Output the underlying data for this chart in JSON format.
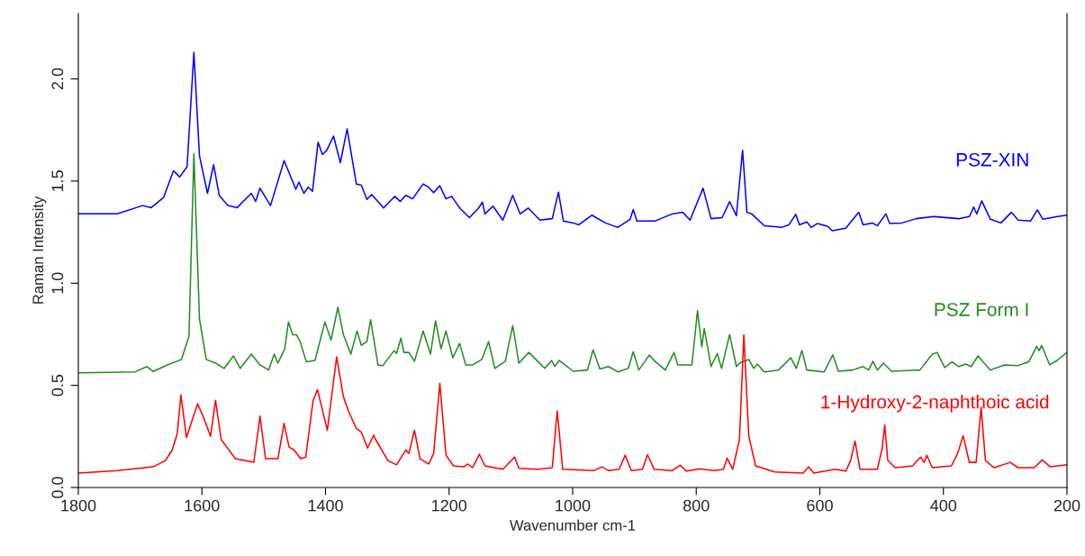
{
  "chart_data": {
    "type": "line",
    "xlabel": "Wavenumber cm-1",
    "ylabel": "Raman Intensity",
    "xlim": [
      1800,
      200
    ],
    "xticks": [
      1800,
      1600,
      1400,
      1200,
      1000,
      800,
      600,
      400,
      200
    ],
    "ylim": [
      0,
      2.32
    ],
    "yticks": [
      {
        "value": 0,
        "label": "0.0"
      },
      0.5,
      {
        "value": 1,
        "label": "1.0"
      },
      1.5,
      {
        "value": 2,
        "label": "2.0"
      }
    ],
    "grid": false,
    "legend": false,
    "series": [
      {
        "name": "PSZ-XIN",
        "color": "#0000ff",
        "x": [
          1800,
          1737,
          1696,
          1682,
          1662,
          1646,
          1636,
          1624,
          1613,
          1604,
          1591,
          1581,
          1572,
          1558,
          1543,
          1520,
          1513,
          1506,
          1489,
          1467,
          1448,
          1443,
          1435,
          1428,
          1421,
          1412,
          1405,
          1398,
          1387,
          1376,
          1365,
          1350,
          1342,
          1333,
          1325,
          1306,
          1288,
          1279,
          1270,
          1259,
          1242,
          1233,
          1225,
          1215,
          1205,
          1196,
          1182,
          1167,
          1153,
          1146,
          1142,
          1129,
          1113,
          1097,
          1085,
          1072,
          1053,
          1033,
          1023,
          1015,
          999,
          990,
          969,
          947,
          927,
          907,
          902,
          896,
          867,
          839,
          822,
          810,
          789,
          776,
          758,
          746,
          735,
          725,
          718,
          710,
          690,
          661,
          650,
          639,
          633,
          621,
          614,
          604,
          587,
          580,
          558,
          537,
          530,
          515,
          507,
          493,
          487,
          467,
          444,
          415,
          375,
          358,
          351,
          346,
          338,
          324,
          307,
          290,
          279,
          259,
          248,
          239,
          215,
          200
        ],
        "values": [
          1.34,
          1.34,
          1.38,
          1.37,
          1.42,
          1.55,
          1.52,
          1.57,
          2.13,
          1.625,
          1.44,
          1.58,
          1.43,
          1.38,
          1.37,
          1.44,
          1.4,
          1.465,
          1.38,
          1.6,
          1.46,
          1.495,
          1.44,
          1.47,
          1.45,
          1.69,
          1.63,
          1.65,
          1.72,
          1.59,
          1.755,
          1.485,
          1.48,
          1.41,
          1.434,
          1.368,
          1.425,
          1.4,
          1.43,
          1.413,
          1.486,
          1.469,
          1.443,
          1.477,
          1.413,
          1.425,
          1.365,
          1.321,
          1.365,
          1.396,
          1.339,
          1.377,
          1.309,
          1.43,
          1.339,
          1.368,
          1.309,
          1.316,
          1.446,
          1.304,
          1.295,
          1.286,
          1.333,
          1.295,
          1.273,
          1.313,
          1.361,
          1.304,
          1.304,
          1.339,
          1.347,
          1.309,
          1.465,
          1.316,
          1.321,
          1.4,
          1.33,
          1.651,
          1.347,
          1.339,
          1.281,
          1.274,
          1.286,
          1.337,
          1.286,
          1.3,
          1.273,
          1.292,
          1.278,
          1.257,
          1.269,
          1.347,
          1.286,
          1.295,
          1.281,
          1.339,
          1.292,
          1.295,
          1.316,
          1.326,
          1.316,
          1.326,
          1.373,
          1.339,
          1.403,
          1.313,
          1.295,
          1.347,
          1.309,
          1.304,
          1.359,
          1.313,
          1.326,
          1.333
        ]
      },
      {
        "name": "PSZ Form I",
        "color": "#228b22",
        "x": [
          1800,
          1708,
          1689,
          1679,
          1656,
          1633,
          1621,
          1613,
          1604,
          1593,
          1578,
          1564,
          1549,
          1538,
          1520,
          1506,
          1492,
          1483,
          1477,
          1466,
          1460,
          1453,
          1447,
          1441,
          1431,
          1417,
          1401,
          1391,
          1380,
          1371,
          1359,
          1349,
          1342,
          1333,
          1327,
          1315,
          1307,
          1289,
          1285,
          1278,
          1273,
          1265,
          1256,
          1242,
          1230,
          1222,
          1213,
          1205,
          1194,
          1183,
          1173,
          1162,
          1147,
          1136,
          1126,
          1109,
          1097,
          1087,
          1071,
          1045,
          1034,
          1029,
          1022,
          999,
          976,
          967,
          956,
          942,
          927,
          910,
          902,
          893,
          876,
          867,
          850,
          836,
          830,
          807,
          798,
          791,
          787,
          776,
          766,
          759,
          746,
          735,
          730,
          715,
          707,
          701,
          690,
          667,
          647,
          638,
          629,
          621,
          593,
          579,
          570,
          547,
          530,
          521,
          514,
          507,
          497,
          484,
          438,
          418,
          410,
          398,
          386,
          375,
          364,
          355,
          344,
          324,
          301,
          279,
          262,
          249,
          245,
          241,
          228,
          216,
          200
        ],
        "values": [
          0.561,
          0.566,
          0.592,
          0.568,
          0.6,
          0.627,
          0.74,
          1.634,
          0.826,
          0.627,
          0.609,
          0.583,
          0.644,
          0.583,
          0.653,
          0.6,
          0.575,
          0.653,
          0.609,
          0.679,
          0.81,
          0.748,
          0.748,
          0.714,
          0.615,
          0.622,
          0.81,
          0.722,
          0.882,
          0.748,
          0.653,
          0.766,
          0.696,
          0.714,
          0.821,
          0.6,
          0.597,
          0.67,
          0.656,
          0.731,
          0.661,
          0.661,
          0.618,
          0.766,
          0.653,
          0.816,
          0.679,
          0.766,
          0.635,
          0.705,
          0.6,
          0.6,
          0.627,
          0.714,
          0.583,
          0.618,
          0.792,
          0.609,
          0.661,
          0.583,
          0.622,
          0.592,
          0.622,
          0.569,
          0.575,
          0.674,
          0.58,
          0.592,
          0.566,
          0.583,
          0.665,
          0.575,
          0.648,
          0.618,
          0.575,
          0.661,
          0.6,
          0.6,
          0.865,
          0.688,
          0.778,
          0.592,
          0.656,
          0.583,
          0.748,
          0.592,
          0.609,
          0.627,
          0.583,
          0.604,
          0.566,
          0.575,
          0.635,
          0.583,
          0.67,
          0.575,
          0.566,
          0.649,
          0.569,
          0.575,
          0.592,
          0.575,
          0.618,
          0.575,
          0.609,
          0.569,
          0.575,
          0.653,
          0.661,
          0.587,
          0.615,
          0.592,
          0.604,
          0.592,
          0.644,
          0.575,
          0.6,
          0.597,
          0.615,
          0.691,
          0.67,
          0.696,
          0.6,
          0.622,
          0.661
        ]
      },
      {
        "name": "1-Hydroxy-2-naphthoic acid",
        "color": "#ff0000",
        "x": [
          1800,
          1737,
          1679,
          1659,
          1648,
          1640,
          1634,
          1625,
          1607,
          1597,
          1586,
          1578,
          1569,
          1546,
          1516,
          1506,
          1497,
          1477,
          1467,
          1459,
          1451,
          1440,
          1432,
          1420,
          1413,
          1397,
          1382,
          1371,
          1363,
          1350,
          1342,
          1332,
          1322,
          1319,
          1299,
          1285,
          1270,
          1265,
          1256,
          1247,
          1233,
          1225,
          1215,
          1205,
          1193,
          1176,
          1170,
          1162,
          1151,
          1142,
          1113,
          1094,
          1087,
          1056,
          1033,
          1025,
          1016,
          965,
          953,
          942,
          925,
          915,
          905,
          887,
          879,
          868,
          839,
          826,
          816,
          795,
          771,
          756,
          750,
          741,
          730,
          723,
          715,
          704,
          673,
          627,
          618,
          610,
          575,
          558,
          550,
          543,
          535,
          507,
          499,
          495,
          490,
          478,
          450,
          437,
          431,
          427,
          418,
          387,
          377,
          368,
          358,
          347,
          339,
          332,
          318,
          292,
          279,
          253,
          240,
          227,
          200
        ],
        "values": [
          0.071,
          0.083,
          0.101,
          0.132,
          0.184,
          0.262,
          0.453,
          0.245,
          0.41,
          0.34,
          0.25,
          0.427,
          0.236,
          0.141,
          0.123,
          0.349,
          0.141,
          0.141,
          0.314,
          0.198,
          0.184,
          0.141,
          0.149,
          0.427,
          0.479,
          0.28,
          0.639,
          0.444,
          0.375,
          0.288,
          0.271,
          0.193,
          0.257,
          0.236,
          0.132,
          0.111,
          0.184,
          0.167,
          0.28,
          0.141,
          0.115,
          0.167,
          0.509,
          0.158,
          0.106,
          0.101,
          0.115,
          0.097,
          0.163,
          0.106,
          0.089,
          0.149,
          0.094,
          0.089,
          0.097,
          0.375,
          0.089,
          0.083,
          0.101,
          0.083,
          0.089,
          0.158,
          0.083,
          0.089,
          0.161,
          0.089,
          0.083,
          0.109,
          0.08,
          0.092,
          0.083,
          0.089,
          0.144,
          0.089,
          0.236,
          0.748,
          0.253,
          0.106,
          0.076,
          0.071,
          0.101,
          0.071,
          0.089,
          0.08,
          0.132,
          0.227,
          0.089,
          0.089,
          0.193,
          0.306,
          0.132,
          0.097,
          0.106,
          0.149,
          0.123,
          0.158,
          0.097,
          0.106,
          0.167,
          0.253,
          0.123,
          0.123,
          0.392,
          0.132,
          0.097,
          0.123,
          0.097,
          0.097,
          0.135,
          0.101,
          0.111
        ]
      }
    ]
  }
}
